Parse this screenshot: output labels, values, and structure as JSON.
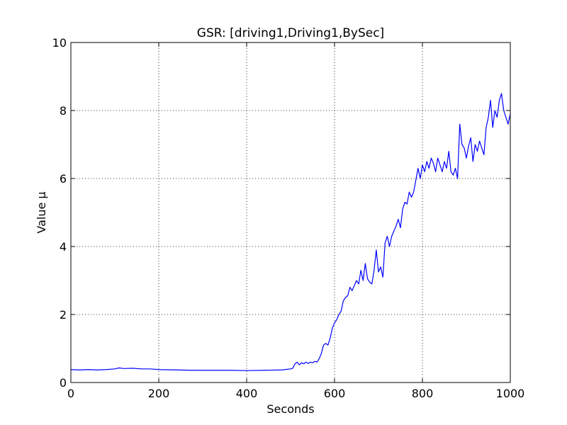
{
  "chart_data": {
    "type": "line",
    "title": "GSR: [driving1,Driving1,BySec]",
    "xlabel": "Seconds",
    "ylabel": "Value µ",
    "xlim": [
      0,
      1000
    ],
    "ylim": [
      0,
      10
    ],
    "xticks": [
      0,
      200,
      400,
      600,
      800,
      1000
    ],
    "xtick_labels": [
      "0",
      "200",
      "400",
      "600",
      "800",
      "1000"
    ],
    "yticks": [
      0,
      2,
      4,
      6,
      8,
      10
    ],
    "ytick_labels": [
      "0",
      "2",
      "4",
      "6",
      "8",
      "10"
    ],
    "grid": true,
    "series": [
      {
        "color": "#0000ff",
        "x": [
          0,
          20,
          40,
          60,
          80,
          100,
          110,
          120,
          140,
          160,
          180,
          200,
          240,
          280,
          320,
          360,
          400,
          440,
          480,
          500,
          505,
          510,
          515,
          520,
          525,
          530,
          535,
          540,
          545,
          550,
          555,
          560,
          565,
          570,
          575,
          580,
          585,
          590,
          595,
          600,
          605,
          610,
          615,
          620,
          625,
          630,
          635,
          640,
          645,
          650,
          655,
          660,
          665,
          670,
          675,
          680,
          685,
          690,
          695,
          700,
          705,
          710,
          715,
          720,
          725,
          730,
          735,
          740,
          745,
          750,
          755,
          760,
          765,
          770,
          775,
          780,
          785,
          790,
          795,
          800,
          805,
          810,
          815,
          820,
          825,
          830,
          835,
          840,
          845,
          850,
          855,
          860,
          865,
          870,
          875,
          880,
          885,
          890,
          895,
          900,
          905,
          910,
          915,
          920,
          925,
          930,
          935,
          940,
          945,
          950,
          955,
          960,
          965,
          970,
          975,
          980,
          985,
          990,
          995,
          1000
        ],
        "y": [
          0.38,
          0.37,
          0.38,
          0.37,
          0.38,
          0.4,
          0.43,
          0.41,
          0.42,
          0.4,
          0.4,
          0.38,
          0.37,
          0.36,
          0.36,
          0.36,
          0.35,
          0.36,
          0.37,
          0.4,
          0.42,
          0.55,
          0.6,
          0.52,
          0.58,
          0.55,
          0.6,
          0.56,
          0.6,
          0.58,
          0.62,
          0.6,
          0.7,
          0.85,
          1.1,
          1.15,
          1.1,
          1.3,
          1.6,
          1.75,
          1.85,
          2.0,
          2.1,
          2.4,
          2.5,
          2.55,
          2.8,
          2.7,
          2.85,
          3.0,
          2.9,
          3.3,
          3.0,
          3.5,
          3.05,
          2.95,
          2.9,
          3.3,
          3.9,
          3.25,
          3.4,
          3.1,
          4.1,
          4.3,
          4.0,
          4.3,
          4.45,
          4.6,
          4.8,
          4.55,
          5.1,
          5.3,
          5.25,
          5.6,
          5.45,
          5.6,
          5.95,
          6.3,
          6.0,
          6.4,
          6.2,
          6.5,
          6.3,
          6.6,
          6.45,
          6.2,
          6.6,
          6.4,
          6.2,
          6.5,
          6.3,
          6.8,
          6.2,
          6.1,
          6.3,
          6.0,
          7.6,
          7.0,
          6.9,
          6.6,
          6.95,
          7.2,
          6.5,
          7.0,
          6.8,
          7.1,
          6.9,
          6.7,
          7.5,
          7.8,
          8.3,
          7.5,
          8.0,
          7.8,
          8.3,
          8.5,
          8.0,
          7.8,
          7.6,
          7.9
        ]
      }
    ]
  }
}
